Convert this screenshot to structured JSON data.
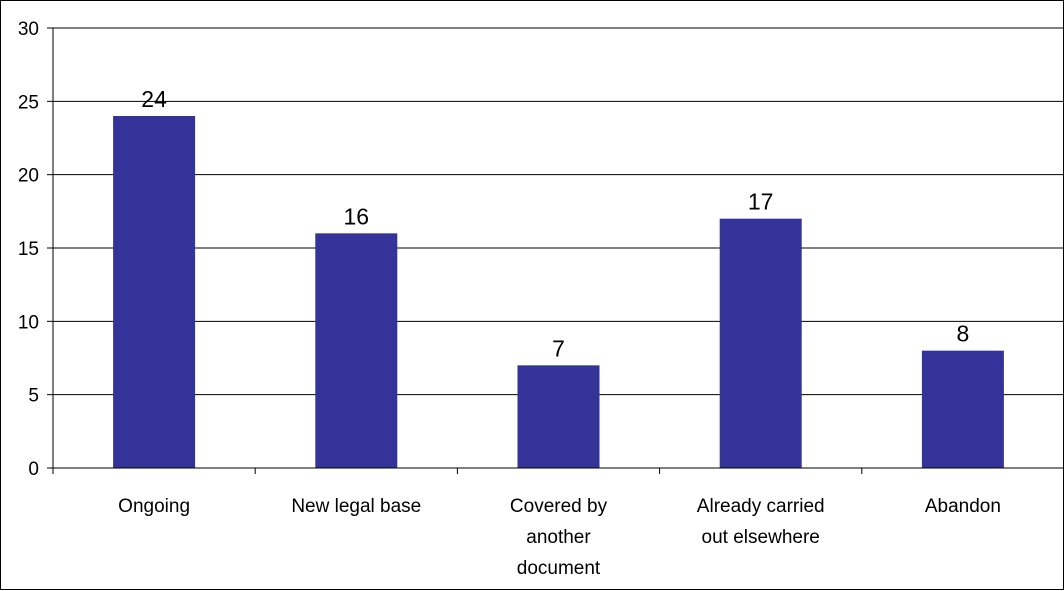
{
  "chart_data": {
    "type": "bar",
    "title": "",
    "xlabel": "",
    "ylabel": "",
    "categories": [
      [
        "Ongoing"
      ],
      [
        "New legal base"
      ],
      [
        "Covered by",
        "another",
        "document"
      ],
      [
        "Already carried",
        "out elsewhere"
      ],
      [
        "Abandon"
      ]
    ],
    "values": [
      24,
      16,
      7,
      17,
      8
    ],
    "data_labels": [
      "24",
      "16",
      "7",
      "17",
      "8"
    ],
    "ylim": [
      0,
      30
    ],
    "yticks": [
      0,
      5,
      10,
      15,
      20,
      25,
      30
    ],
    "grid": true,
    "legend": "none",
    "colors": {
      "bar": "#333399",
      "grid": "#000000",
      "axis": "#000000"
    }
  }
}
